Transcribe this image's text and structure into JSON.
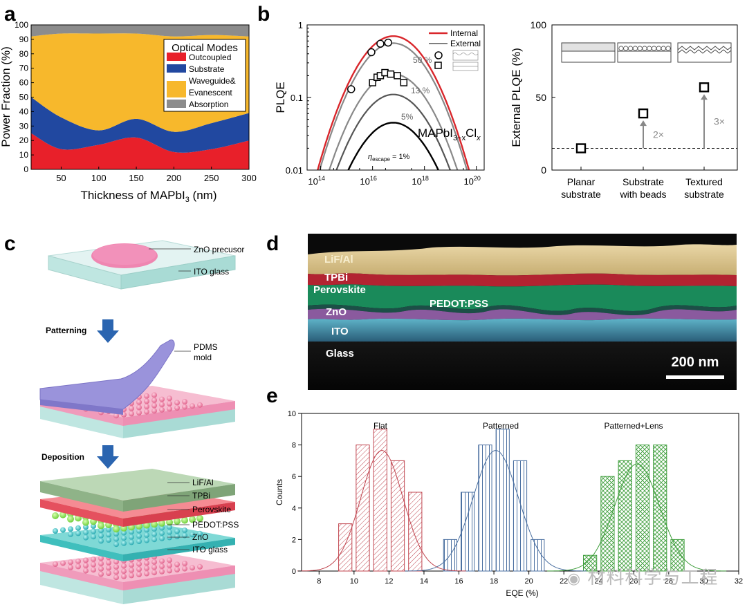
{
  "panels": {
    "a": "a",
    "b": "b",
    "c": "c",
    "d": "d",
    "e": "e"
  },
  "panel_a": {
    "legend_title": "Optical Modes",
    "legend": [
      {
        "label": "Outcoupled",
        "color": "#e8202a"
      },
      {
        "label": "Substrate",
        "color": "#2148a0"
      },
      {
        "label": "Waveguide&",
        "color": "#f7b82c"
      },
      {
        "label": "Evanescent",
        "color": "#f7b82c"
      },
      {
        "label": "Absorption",
        "color": "#8c8c8c"
      }
    ],
    "xlabel_pre": "Thickness of MAPbI",
    "xlabel_sub": "3",
    "xlabel_post": " (nm)",
    "ylabel": "Power Fraction (%)",
    "xticks": [
      "50",
      "100",
      "150",
      "200",
      "250",
      "300"
    ],
    "yticks": [
      "0",
      "10",
      "20",
      "30",
      "40",
      "50",
      "60",
      "70",
      "80",
      "90",
      "100"
    ]
  },
  "panel_b1": {
    "ylabel": "PLQE",
    "yticks": [
      "1",
      "0.1",
      "0.01"
    ],
    "xtick_base": "10",
    "xtick_exps": [
      "14",
      "16",
      "18",
      "20"
    ],
    "legend": [
      {
        "label": "Internal",
        "color": "#d9262b"
      },
      {
        "label": "External",
        "color": "#555555"
      }
    ],
    "labels": {
      "p50": "50 %",
      "p13": "13 %",
      "p5": "5%",
      "eta_pre": "η",
      "eta_sub": "escape",
      "eta_post": " = 1%"
    },
    "compound_pre": "MAPbI",
    "compound_sub1": "3−x",
    "compound_mid": "Cl",
    "compound_sub2": "x"
  },
  "panel_b2": {
    "ylabel": "External PLQE (%)",
    "yticks": [
      "0",
      "50",
      "100"
    ],
    "categories": [
      {
        "line1": "Planar",
        "line2": "substrate"
      },
      {
        "line1": "Substrate",
        "line2": "with beads"
      },
      {
        "line1": "Textured",
        "line2": "substrate"
      }
    ],
    "values": [
      15,
      39,
      57
    ],
    "baseline": 15,
    "arrows": [
      "2×",
      "3×"
    ]
  },
  "panel_c": {
    "labels": {
      "zno": "ZnO precusor",
      "ito": "ITO glass",
      "patterning": "Patterning",
      "pdms1": "PDMS",
      "pdms2": "mold",
      "deposition": "Deposition"
    },
    "stack": [
      "LiF/Al",
      "TPBi",
      "Perovskite",
      "PEDOT:PSS",
      "ZnO",
      "ITO glass"
    ]
  },
  "panel_d": {
    "layers": [
      "LiF/Al",
      "TPBi",
      "Perovskite",
      "PEDOT:PSS",
      "ZnO",
      "ITO",
      "Glass"
    ],
    "scalebar": "200 nm"
  },
  "panel_e": {
    "ylabel": "Counts",
    "xlabel": "EQE (%)",
    "xticks": [
      "8",
      "10",
      "12",
      "14",
      "16",
      "18",
      "20",
      "22",
      "24",
      "26",
      "28",
      "30",
      "32"
    ],
    "yticks": [
      "0",
      "2",
      "4",
      "6",
      "8",
      "10"
    ],
    "groups": [
      {
        "name": "Flat",
        "color": "#c0454f"
      },
      {
        "name": "Patterned",
        "color": "#4a6fa0"
      },
      {
        "name": "Patterned+Lens",
        "color": "#3f9e3c"
      }
    ]
  },
  "watermark": "材料科学与工程",
  "chart_data": [
    {
      "type": "area",
      "title": "",
      "xlabel": "Thickness of MAPbI3 (nm)",
      "ylabel": "Power Fraction (%)",
      "xlim": [
        10,
        300
      ],
      "ylim": [
        0,
        100
      ],
      "x": [
        10,
        50,
        100,
        150,
        200,
        250,
        300
      ],
      "series": [
        {
          "name": "Outcoupled",
          "values": [
            25,
            14,
            17,
            22,
            12,
            14,
            20
          ]
        },
        {
          "name": "Substrate",
          "values": [
            25,
            22,
            10,
            13,
            14,
            18,
            19
          ]
        },
        {
          "name": "Waveguide& Evanescent",
          "values": [
            42,
            58,
            67,
            59,
            66,
            61,
            53
          ]
        },
        {
          "name": "Absorption",
          "values": [
            8,
            6,
            6,
            6,
            8,
            7,
            8
          ]
        }
      ]
    },
    {
      "type": "line",
      "ylabel": "PLQE",
      "yscale": "log",
      "ylim": [
        0.01,
        1
      ],
      "xscale": "log",
      "xlim": [
        30000000000000.0,
        2e+20
      ],
      "series": [
        {
          "name": "Internal",
          "values": [
            0.7
          ]
        },
        {
          "name": "External 50 %",
          "values": [
            0.56
          ]
        },
        {
          "name": "External 13 %",
          "values": [
            0.21
          ]
        },
        {
          "name": "External 5%",
          "values": [
            0.11
          ]
        },
        {
          "name": "External 1%",
          "values": [
            0.045
          ]
        }
      ]
    },
    {
      "type": "scatter",
      "ylabel": "External PLQE (%)",
      "ylim": [
        0,
        100
      ],
      "categories": [
        "Planar substrate",
        "Substrate with beads",
        "Textured substrate"
      ],
      "values": [
        15,
        39,
        57
      ]
    },
    {
      "type": "bar",
      "xlabel": "EQE (%)",
      "ylabel": "Counts",
      "xlim": [
        7,
        32
      ],
      "ylim": [
        0,
        10
      ],
      "series": [
        {
          "name": "Flat",
          "x": [
            9.5,
            10.5,
            11.5,
            12.5,
            13.5
          ],
          "values": [
            3,
            8,
            9,
            7,
            5
          ]
        },
        {
          "name": "Patterned",
          "x": [
            15.5,
            16.5,
            17.5,
            18.5,
            19.5,
            20.5
          ],
          "values": [
            2,
            5,
            8,
            9,
            7,
            2
          ]
        },
        {
          "name": "Patterned+Lens",
          "x": [
            23.5,
            24.5,
            25.5,
            26.5,
            27.5,
            28.5
          ],
          "values": [
            1,
            6,
            7,
            8,
            8,
            2
          ]
        }
      ]
    }
  ]
}
